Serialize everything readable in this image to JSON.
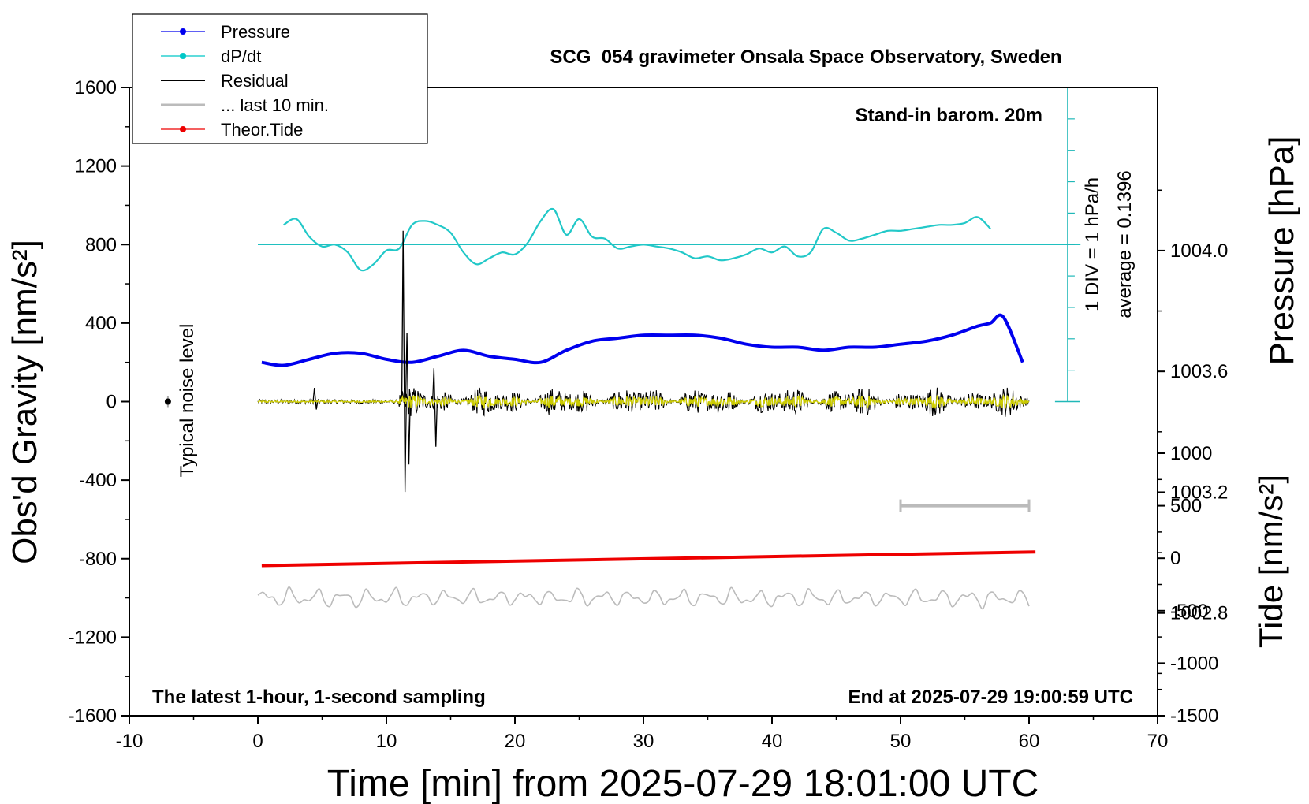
{
  "chart_data": {
    "type": "line",
    "title": "SCG_054 gravimeter Onsala Space Observatory, Sweden",
    "xlabel": "Time [min] from 2025-07-29 18:01:00 UTC",
    "ylabel_left": "Obs'd Gravity [nm/s²]",
    "ylabel_right_top": "Pressure [hPa]",
    "ylabel_right_bottom": "Tide [nm/s²]",
    "xlim": [
      -10,
      70
    ],
    "ylim": [
      -1600,
      1600
    ],
    "x_ticks": [
      "-10",
      "0",
      "10",
      "20",
      "30",
      "40",
      "50",
      "60",
      "70"
    ],
    "y_ticks": [
      "-1600",
      "-1200",
      "-800",
      "-400",
      "0",
      "400",
      "800",
      "1200",
      "1600"
    ],
    "pressure_axis": {
      "ticks": [
        "1002.8",
        "1003.2",
        "1003.6",
        "1004.0"
      ],
      "range_hpa": [
        1002.46,
        1004.54
      ]
    },
    "tide_axis": {
      "ticks": [
        "-1500",
        "-1000",
        "-500",
        "0",
        "500",
        "1000"
      ],
      "range": [
        -1500,
        1000
      ]
    },
    "dpdt_axis": {
      "label": "1 DIV = 1 hPa/h",
      "average_label": "average = 0.1396",
      "divisions": 10
    },
    "legend": [
      {
        "name": "Pressure",
        "color": "#0000ee",
        "marker": true
      },
      {
        "name": "dP/dt",
        "color": "#00c8c8",
        "marker": true
      },
      {
        "name": "Residual",
        "color": "#000000",
        "marker": false
      },
      {
        "name": "... last 10 min.",
        "color": "#bbbbbb",
        "marker": false
      },
      {
        "name": "Theor.Tide",
        "color": "#ee0000",
        "marker": true
      }
    ],
    "annotations": {
      "stand_in": "Stand-in barom. 20m",
      "latest": "The latest 1-hour, 1-second sampling",
      "end": "End at 2025-07-29 19:00:59 UTC",
      "noise": "Typical noise level",
      "noise_point": {
        "x": -7,
        "y": 0
      },
      "last10_bar": {
        "x": [
          50,
          60
        ],
        "tide_value": 500
      }
    },
    "series": [
      {
        "name": "Pressure",
        "axis": "pressure",
        "x": [
          0.3,
          2,
          4,
          6,
          8,
          10,
          12,
          14,
          16,
          18,
          20,
          22,
          24,
          26,
          28,
          30,
          32,
          34,
          36,
          38,
          40,
          42,
          44,
          46,
          48,
          50,
          52,
          54,
          56,
          57,
          58,
          59.5
        ],
        "values": [
          1003.63,
          1003.62,
          1003.64,
          1003.66,
          1003.66,
          1003.64,
          1003.63,
          1003.65,
          1003.67,
          1003.65,
          1003.64,
          1003.63,
          1003.67,
          1003.7,
          1003.71,
          1003.72,
          1003.72,
          1003.72,
          1003.71,
          1003.69,
          1003.68,
          1003.68,
          1003.67,
          1003.68,
          1003.68,
          1003.69,
          1003.7,
          1003.72,
          1003.75,
          1003.76,
          1003.78,
          1003.63
        ]
      },
      {
        "name": "dP/dt",
        "axis": "left",
        "x": [
          2,
          3,
          4,
          5,
          6,
          7,
          8,
          9,
          10,
          11,
          12,
          13,
          14,
          15,
          16,
          17,
          18,
          19,
          20,
          21,
          22,
          23,
          24,
          25,
          26,
          27,
          28,
          29,
          30,
          31,
          32,
          33,
          34,
          35,
          36,
          37,
          38,
          39,
          40,
          41,
          42,
          43,
          44,
          45,
          46,
          47,
          48,
          49,
          50,
          51,
          52,
          53,
          54,
          55,
          56,
          57
        ],
        "values": [
          900,
          930,
          840,
          790,
          800,
          760,
          670,
          700,
          770,
          780,
          900,
          920,
          900,
          860,
          760,
          700,
          730,
          760,
          750,
          810,
          920,
          980,
          850,
          930,
          840,
          830,
          780,
          790,
          800,
          790,
          780,
          760,
          730,
          740,
          720,
          730,
          750,
          780,
          760,
          790,
          740,
          760,
          880,
          860,
          820,
          830,
          850,
          870,
          870,
          880,
          890,
          900,
          900,
          910,
          940,
          880
        ]
      },
      {
        "name": "dP/dt average",
        "axis": "left",
        "x": [
          0,
          64
        ],
        "values": [
          800,
          800
        ]
      },
      {
        "name": "Residual",
        "axis": "left",
        "x_range": [
          0,
          60
        ],
        "noise_envelope": {
          "quiet": [
            0,
            11
          ],
          "amplitude_quiet": 10,
          "amplitude_active": 80
        },
        "events": [
          {
            "x": 4.4,
            "values": [
              70,
              -40
            ]
          },
          {
            "x": 11.3,
            "values": [
              870,
              -460
            ]
          },
          {
            "x": 11.6,
            "values": [
              350,
              -320
            ]
          },
          {
            "x": 13.7,
            "values": [
              170,
              -230
            ]
          }
        ]
      },
      {
        "name": "... last 10 min.",
        "axis": "left",
        "x_range": [
          0,
          60
        ],
        "baseline": -1000,
        "amplitude": 60
      },
      {
        "name": "Theor.Tide",
        "axis": "tide",
        "x": [
          0.3,
          60.5
        ],
        "values": [
          -70,
          60
        ]
      }
    ]
  }
}
